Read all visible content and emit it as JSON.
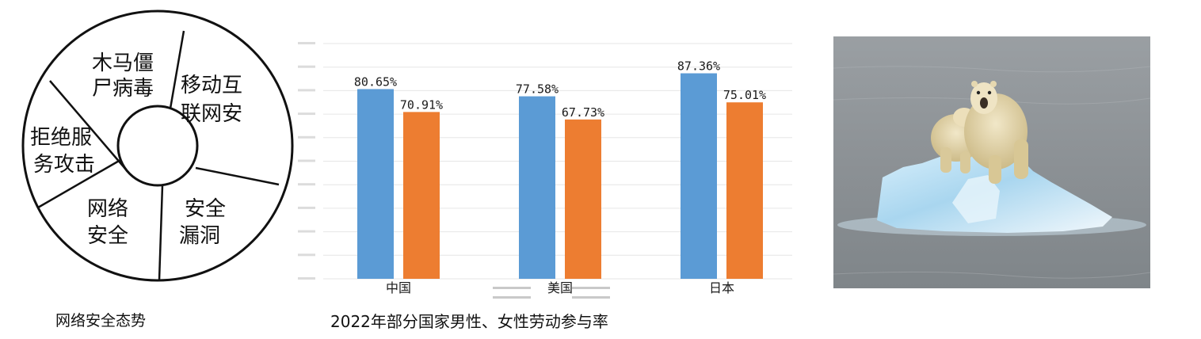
{
  "wheel": {
    "caption": "网络安全态势",
    "segments": [
      {
        "line1": "木马僵",
        "line2": "尸病毒"
      },
      {
        "line1": "移动互",
        "line2": "联网安"
      },
      {
        "line1": "安全",
        "line2": "漏洞"
      },
      {
        "line1": "网络",
        "line2": "安全"
      },
      {
        "line1": "拒绝服",
        "line2": "务攻击"
      }
    ]
  },
  "chart": {
    "caption": "2022年部分国家男性、女性劳动参与率"
  },
  "chart_data": {
    "type": "bar",
    "categories": [
      "中国",
      "美国",
      "日本"
    ],
    "series": [
      {
        "values": [
          80.65,
          77.58,
          87.36
        ],
        "labels": [
          "80.65%",
          "77.58%",
          "87.36%"
        ]
      },
      {
        "values": [
          70.91,
          67.73,
          75.01
        ],
        "labels": [
          "70.91%",
          "67.73%",
          "75.01%"
        ]
      }
    ],
    "ylim": [
      0,
      100
    ],
    "grid": true,
    "colors": [
      "#5b9bd5",
      "#ed7d31"
    ]
  },
  "photo": {
    "colors": {
      "water": "#8f9498",
      "ice": "#bfe0f2",
      "bear": "#e8dcb8"
    }
  }
}
